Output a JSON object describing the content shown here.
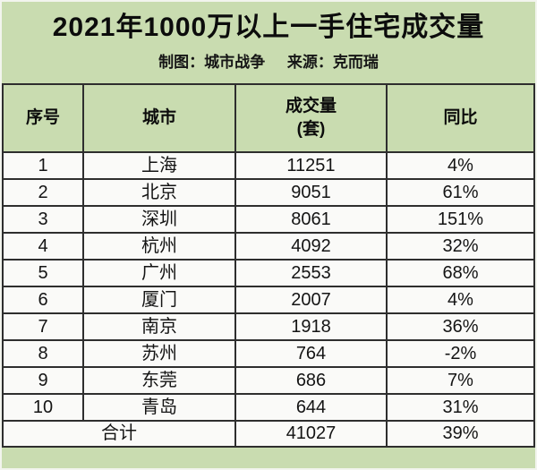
{
  "poster": {
    "title": "2021年1000万以上一手住宅成交量",
    "subtitle": {
      "maker": "制图：城市战争",
      "source": "来源：克而瑞"
    }
  },
  "table": {
    "headers": {
      "index": "序号",
      "city": "城市",
      "volume_line1": "成交量",
      "volume_line2": "(套)",
      "yoy": "同比"
    },
    "rows": [
      {
        "index": "1",
        "city": "上海",
        "volume": "11251",
        "yoy": "4%"
      },
      {
        "index": "2",
        "city": "北京",
        "volume": "9051",
        "yoy": "61%"
      },
      {
        "index": "3",
        "city": "深圳",
        "volume": "8061",
        "yoy": "151%"
      },
      {
        "index": "4",
        "city": "杭州",
        "volume": "4092",
        "yoy": "32%"
      },
      {
        "index": "5",
        "city": "广州",
        "volume": "2553",
        "yoy": "68%"
      },
      {
        "index": "6",
        "city": "厦门",
        "volume": "2007",
        "yoy": "4%"
      },
      {
        "index": "7",
        "city": "南京",
        "volume": "1918",
        "yoy": "36%"
      },
      {
        "index": "8",
        "city": "苏州",
        "volume": "764",
        "yoy": "-2%"
      },
      {
        "index": "9",
        "city": "东莞",
        "volume": "686",
        "yoy": "7%"
      },
      {
        "index": "10",
        "city": "青岛",
        "volume": "644",
        "yoy": "31%"
      }
    ],
    "total": {
      "label": "合计",
      "volume": "41027",
      "yoy": "39%"
    }
  },
  "colors": {
    "background_green": "#c9dcb0",
    "row_background": "#fafaf8",
    "border": "#2e2e2e",
    "text": "#111111"
  },
  "chart_data": {
    "type": "table",
    "title": "2021年1000万以上一手住宅成交量",
    "subtitle": "制图：城市战争 来源：克而瑞",
    "columns": [
      "序号",
      "城市",
      "成交量(套)",
      "同比"
    ],
    "rows": [
      [
        1,
        "上海",
        11251,
        "4%"
      ],
      [
        2,
        "北京",
        9051,
        "61%"
      ],
      [
        3,
        "深圳",
        8061,
        "151%"
      ],
      [
        4,
        "杭州",
        4092,
        "32%"
      ],
      [
        5,
        "广州",
        2553,
        "68%"
      ],
      [
        6,
        "厦门",
        2007,
        "4%"
      ],
      [
        7,
        "南京",
        1918,
        "36%"
      ],
      [
        8,
        "苏州",
        764,
        "-2%"
      ],
      [
        9,
        "东莞",
        686,
        "7%"
      ],
      [
        10,
        "青岛",
        644,
        "31%"
      ]
    ],
    "total_row": [
      "合计",
      41027,
      "39%"
    ]
  }
}
